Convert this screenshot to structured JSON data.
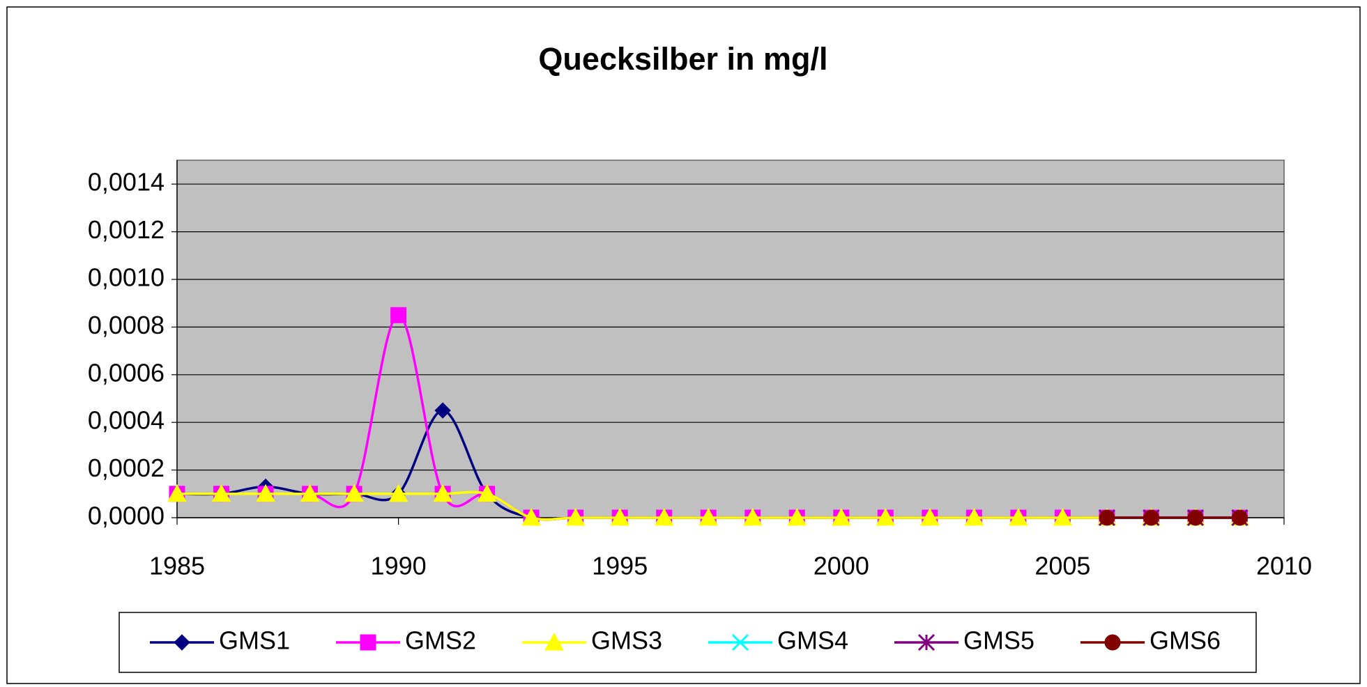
{
  "chart_data": {
    "type": "line",
    "title": "Quecksilber in mg/l",
    "x": [
      1985,
      1986,
      1987,
      1988,
      1989,
      1990,
      1991,
      1992,
      1993,
      1994,
      1995,
      1996,
      1997,
      1998,
      1999,
      2000,
      2001,
      2002,
      2003,
      2004,
      2005,
      2006,
      2007,
      2008,
      2009
    ],
    "series": [
      {
        "name": "GMS1",
        "color": "#000080",
        "marker": "diamond",
        "values": [
          0.0001,
          0.0001,
          0.00013,
          0.0001,
          0.0001,
          0.0001,
          0.00045,
          0.0001,
          0,
          0,
          0,
          0,
          0,
          0,
          0,
          0,
          0,
          0,
          0,
          0,
          0,
          0,
          0,
          0,
          0
        ]
      },
      {
        "name": "GMS2",
        "color": "#FF00FF",
        "marker": "square",
        "values": [
          0.0001,
          0.0001,
          0.0001,
          0.0001,
          0.0001,
          0.00085,
          0.0001,
          0.0001,
          0,
          0,
          0,
          0,
          0,
          0,
          0,
          0,
          0,
          0,
          0,
          0,
          0,
          0,
          0,
          0,
          0
        ]
      },
      {
        "name": "GMS3",
        "color": "#FFFF00",
        "marker": "triangle",
        "values": [
          0.0001,
          0.0001,
          0.0001,
          0.0001,
          0.0001,
          0.0001,
          0.0001,
          0.0001,
          0,
          0,
          0,
          0,
          0,
          0,
          0,
          0,
          0,
          0,
          0,
          0,
          0,
          0,
          0,
          0,
          0
        ]
      },
      {
        "name": "GMS4",
        "color": "#00FFFF",
        "marker": "x",
        "values": [
          null,
          null,
          null,
          null,
          null,
          null,
          null,
          null,
          null,
          null,
          null,
          null,
          null,
          null,
          null,
          null,
          null,
          null,
          null,
          null,
          null,
          0,
          0,
          0,
          0
        ]
      },
      {
        "name": "GMS5",
        "color": "#800080",
        "marker": "star",
        "values": [
          null,
          null,
          null,
          null,
          null,
          null,
          null,
          null,
          null,
          null,
          null,
          null,
          null,
          null,
          null,
          null,
          null,
          null,
          null,
          null,
          null,
          0,
          0,
          0,
          0
        ]
      },
      {
        "name": "GMS6",
        "color": "#800000",
        "marker": "circle",
        "values": [
          null,
          null,
          null,
          null,
          null,
          null,
          null,
          null,
          null,
          null,
          null,
          null,
          null,
          null,
          null,
          null,
          null,
          null,
          null,
          null,
          null,
          0,
          0,
          0,
          0
        ]
      }
    ],
    "xlim": [
      1985,
      2010
    ],
    "xticks": [
      1985,
      1990,
      1995,
      2000,
      2005,
      2010
    ],
    "ylim": [
      0,
      0.0015
    ],
    "yticks": [
      {
        "value": 0,
        "label": "0,0000"
      },
      {
        "value": 0.0002,
        "label": "0,0002"
      },
      {
        "value": 0.0004,
        "label": "0,0004"
      },
      {
        "value": 0.0006,
        "label": "0,0006"
      },
      {
        "value": 0.0008,
        "label": "0,0008"
      },
      {
        "value": 0.001,
        "label": "0,0010"
      },
      {
        "value": 0.0012,
        "label": "0,0012"
      },
      {
        "value": 0.0014,
        "label": "0,0014"
      }
    ],
    "grid": true,
    "smooth": true,
    "plot_background": "#C0C0C0",
    "legend": "bottom"
  }
}
